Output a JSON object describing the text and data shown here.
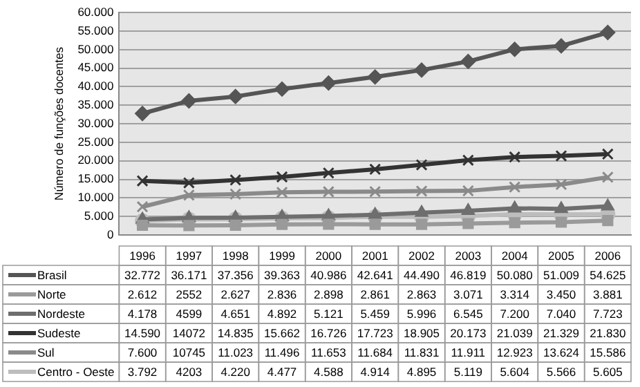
{
  "chart_data": {
    "type": "line",
    "ylabel": "Número de funções docentes",
    "categories": [
      "1996",
      "1997",
      "1998",
      "1999",
      "2000",
      "2001",
      "2002",
      "2003",
      "2004",
      "2005",
      "2006"
    ],
    "ylim": [
      0,
      60000
    ],
    "yticks": [
      {
        "value": 0,
        "label": "0"
      },
      {
        "value": 5000,
        "label": "5.000"
      },
      {
        "value": 10000,
        "label": "10.000"
      },
      {
        "value": 15000,
        "label": "15.000"
      },
      {
        "value": 20000,
        "label": "20.000"
      },
      {
        "value": 25000,
        "label": "25.000"
      },
      {
        "value": 30000,
        "label": "30.000"
      },
      {
        "value": 35000,
        "label": "35.000"
      },
      {
        "value": 40000,
        "label": "40.000"
      },
      {
        "value": 45000,
        "label": "45.000"
      },
      {
        "value": 50000,
        "label": "50.000"
      },
      {
        "value": 55000,
        "label": "55.000"
      },
      {
        "value": 60000,
        "label": "60.000"
      }
    ],
    "grid": "y",
    "legend": "bottom",
    "line_style": "solid",
    "series": [
      {
        "name": "Brasil",
        "color": "#555555",
        "marker": "diamond",
        "values": [
          32772,
          36171,
          37356,
          39363,
          40986,
          42641,
          44490,
          46819,
          50080,
          51009,
          54625
        ],
        "value_labels": [
          "32.772",
          "36.171",
          "37.356",
          "39.363",
          "40.986",
          "42.641",
          "44.490",
          "46.819",
          "50.080",
          "51.009",
          "54.625"
        ]
      },
      {
        "name": "Norte",
        "color": "#9a9a9a",
        "marker": "square",
        "values": [
          2612,
          2552,
          2627,
          2836,
          2898,
          2861,
          2863,
          3071,
          3314,
          3450,
          3881
        ],
        "value_labels": [
          "2.612",
          "2552",
          "2.627",
          "2.836",
          "2.898",
          "2.861",
          "2.863",
          "3.071",
          "3.314",
          "3.450",
          "3.881"
        ]
      },
      {
        "name": "Nordeste",
        "color": "#6e6e6e",
        "marker": "triangle",
        "values": [
          4178,
          4599,
          4651,
          4892,
          5121,
          5459,
          5996,
          6545,
          7200,
          7040,
          7723
        ],
        "value_labels": [
          "4.178",
          "4599",
          "4.651",
          "4.892",
          "5.121",
          "5.459",
          "5.996",
          "6.545",
          "7.200",
          "7.040",
          "7.723"
        ]
      },
      {
        "name": "Sudeste",
        "color": "#333333",
        "marker": "cross",
        "values": [
          14590,
          14072,
          14835,
          15662,
          16726,
          17723,
          18905,
          20173,
          21039,
          21329,
          21830
        ],
        "value_labels": [
          "14.590",
          "14072",
          "14.835",
          "15.662",
          "16.726",
          "17.723",
          "18.905",
          "20.173",
          "21.039",
          "21.329",
          "21.830"
        ]
      },
      {
        "name": "Sul",
        "color": "#8a8a8a",
        "marker": "cross",
        "values": [
          7600,
          10745,
          11023,
          11496,
          11653,
          11684,
          11831,
          11911,
          12923,
          13624,
          15586
        ],
        "value_labels": [
          "7.600",
          "10745",
          "11.023",
          "11.496",
          "11.653",
          "11.684",
          "11.831",
          "11.911",
          "12.923",
          "13.624",
          "15.586"
        ]
      },
      {
        "name": "Centro - Oeste",
        "color": "#bdbdbd",
        "marker": "circle",
        "values": [
          3792,
          4203,
          4220,
          4477,
          4588,
          4914,
          4895,
          5119,
          5604,
          5566,
          5605
        ],
        "value_labels": [
          "3.792",
          "4203",
          "4.220",
          "4.477",
          "4.588",
          "4.914",
          "4.895",
          "5.119",
          "5.604",
          "5.566",
          "5.605"
        ]
      }
    ]
  }
}
